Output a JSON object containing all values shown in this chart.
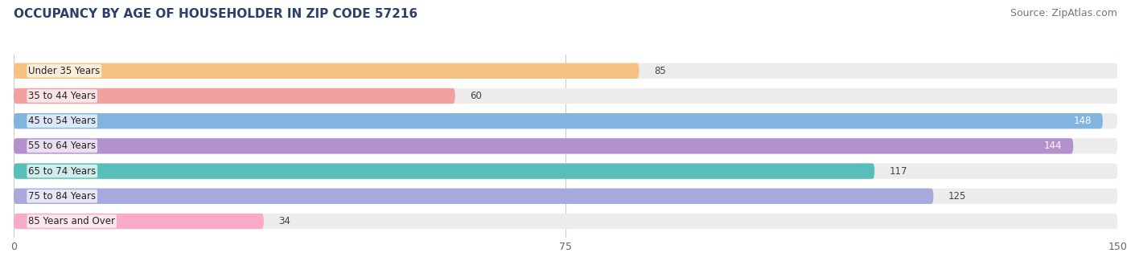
{
  "title": "OCCUPANCY BY AGE OF HOUSEHOLDER IN ZIP CODE 57216",
  "source": "Source: ZipAtlas.com",
  "categories": [
    "Under 35 Years",
    "35 to 44 Years",
    "45 to 54 Years",
    "55 to 64 Years",
    "65 to 74 Years",
    "75 to 84 Years",
    "85 Years and Over"
  ],
  "values": [
    85,
    60,
    148,
    144,
    117,
    125,
    34
  ],
  "bar_colors": [
    "#f6c180",
    "#f2a0a0",
    "#82b4e0",
    "#b490cc",
    "#58beba",
    "#a8aade",
    "#f8aac8"
  ],
  "bar_bg_color": "#ececec",
  "xlim": [
    0,
    150
  ],
  "xticks": [
    0,
    75,
    150
  ],
  "title_color": "#2c3e6b",
  "title_fontsize": 11,
  "source_fontsize": 9,
  "label_fontsize": 8.5,
  "value_fontsize": 8.5,
  "background_color": "#ffffff",
  "bar_height": 0.62,
  "bar_spacing": 1.0
}
